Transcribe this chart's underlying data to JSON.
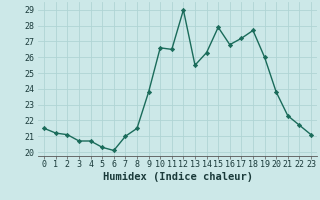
{
  "x": [
    0,
    1,
    2,
    3,
    4,
    5,
    6,
    7,
    8,
    9,
    10,
    11,
    12,
    13,
    14,
    15,
    16,
    17,
    18,
    19,
    20,
    21,
    22,
    23
  ],
  "y": [
    21.5,
    21.2,
    21.1,
    20.7,
    20.7,
    20.3,
    20.1,
    21.0,
    21.5,
    23.8,
    26.6,
    26.5,
    29.0,
    25.5,
    26.3,
    27.9,
    26.8,
    27.2,
    27.7,
    26.0,
    23.8,
    22.3,
    21.7,
    21.1
  ],
  "line_color": "#1a6b5a",
  "marker": "D",
  "marker_size": 2.2,
  "xlabel": "Humidex (Indice chaleur)",
  "xlim": [
    -0.5,
    23.5
  ],
  "ylim": [
    19.75,
    29.5
  ],
  "yticks": [
    20,
    21,
    22,
    23,
    24,
    25,
    26,
    27,
    28,
    29
  ],
  "xticks": [
    0,
    1,
    2,
    3,
    4,
    5,
    6,
    7,
    8,
    9,
    10,
    11,
    12,
    13,
    14,
    15,
    16,
    17,
    18,
    19,
    20,
    21,
    22,
    23
  ],
  "bg_color": "#cce8e8",
  "grid_color": "#b0d4d4",
  "tick_labelsize": 6,
  "xlabel_fontsize": 7.5,
  "linewidth": 1.0
}
